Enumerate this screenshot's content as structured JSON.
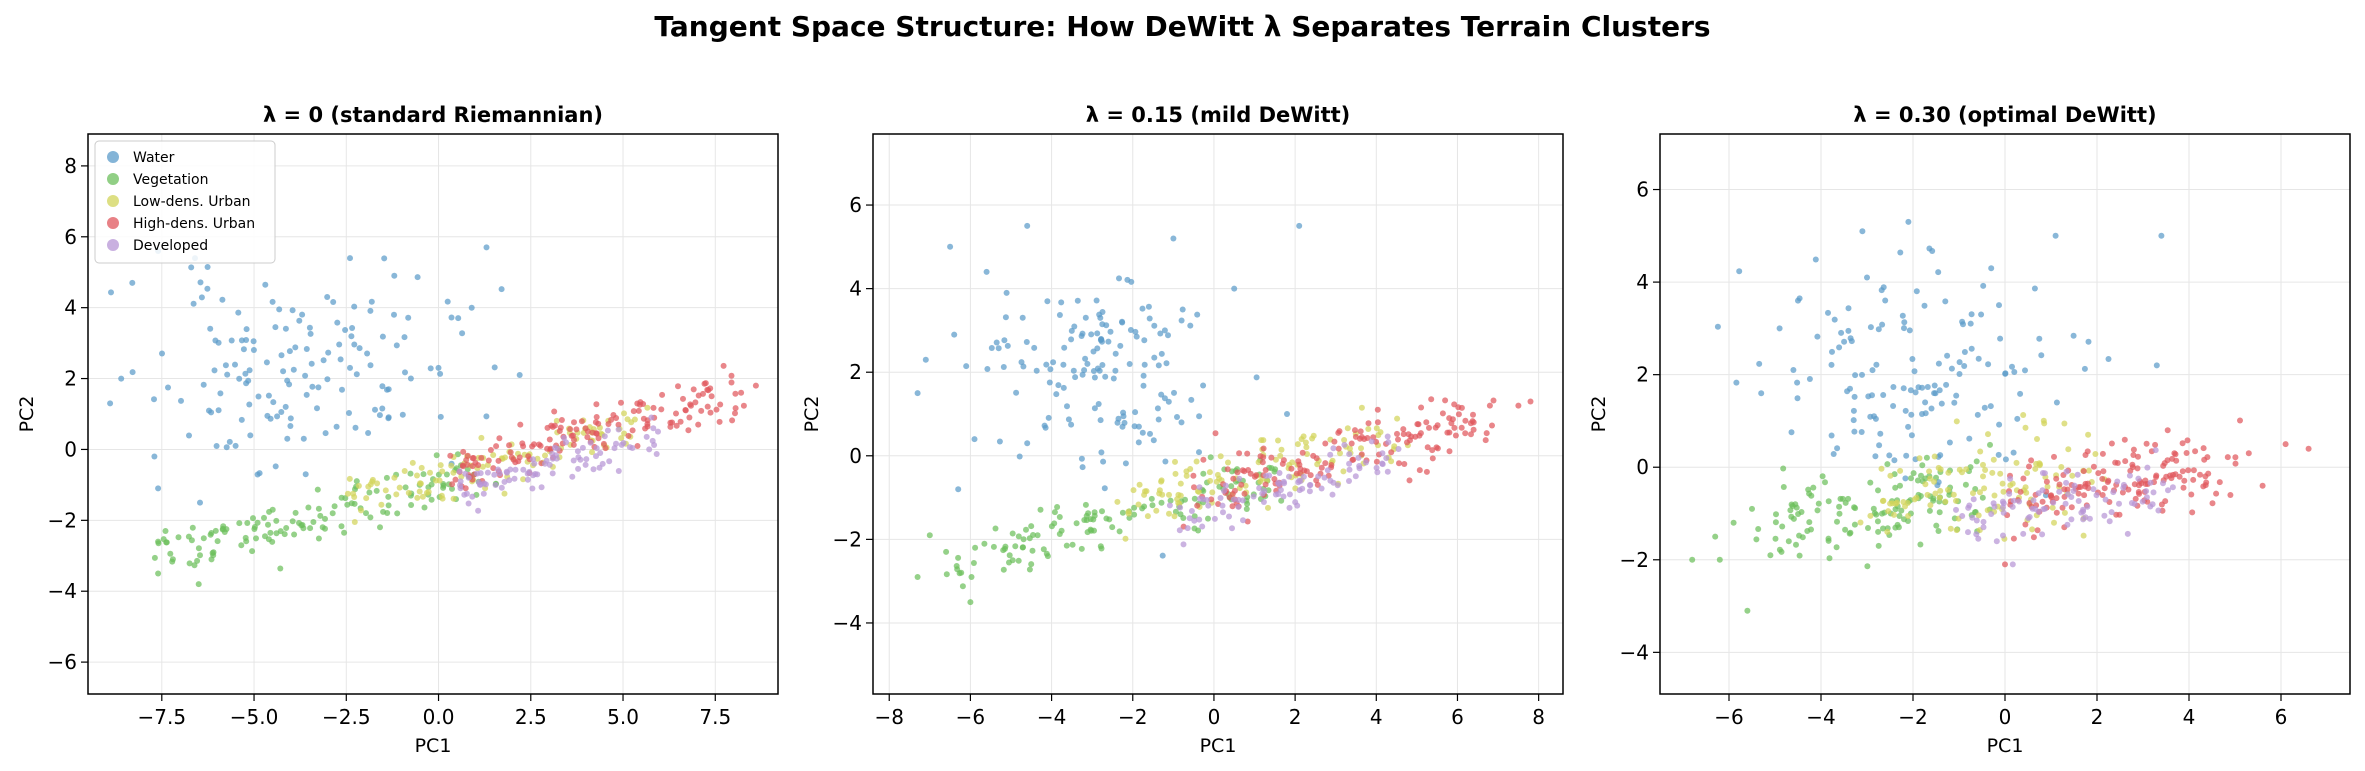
{
  "suptitle": "Tangent Space Structure: How DeWitt λ Separates Terrain Clusters",
  "colors": {
    "Water": "#5b9bc9",
    "Vegetation": "#6cbf5c",
    "Low-dens. Urban": "#d2d45a",
    "High-dens. Urban": "#e0575d",
    "Developed": "#b795d5"
  },
  "legend": {
    "placement": "top-left",
    "entries": [
      "Water",
      "Vegetation",
      "Low-dens. Urban",
      "High-dens. Urban",
      "Developed"
    ]
  },
  "chart_data": [
    {
      "type": "scatter",
      "title": "λ = 0 (standard Riemannian)",
      "xlabel": "PC1",
      "ylabel": "PC2",
      "xlim": [
        -9.5,
        9.2
      ],
      "ylim": [
        -6.9,
        8.9
      ],
      "xticks": [
        -7.5,
        -5.0,
        -2.5,
        0.0,
        2.5,
        5.0,
        7.5
      ],
      "xtick_labels": [
        "−7.5",
        "−5.0",
        "−2.5",
        "0.0",
        "2.5",
        "5.0",
        "7.5"
      ],
      "yticks": [
        -6,
        -4,
        -2,
        0,
        2,
        4,
        6,
        8
      ],
      "ytick_labels": [
        "−6",
        "−4",
        "−2",
        "0",
        "2",
        "4",
        "6",
        "8"
      ],
      "grid": true,
      "legend": true,
      "series": [
        {
          "name": "Water",
          "n": 140,
          "dist": "blob",
          "cx": -3.8,
          "cy": 2.2,
          "sx": 1.9,
          "sy": 1.3,
          "seed": 11,
          "points": [
            [
              -8.9,
              1.3
            ],
            [
              -8.6,
              2.0
            ],
            [
              -7.6,
              5.6
            ],
            [
              -6.6,
              5.4
            ],
            [
              1.3,
              5.7
            ],
            [
              -2.4,
              5.4
            ],
            [
              -1.2,
              4.9
            ],
            [
              0.9,
              4.0
            ],
            [
              -7.6,
              -1.1
            ],
            [
              -7.7,
              -0.2
            ],
            [
              -5.5,
              0.1
            ],
            [
              -3.6,
              -0.7
            ],
            [
              -4.1,
              0.3
            ],
            [
              2.2,
              2.1
            ],
            [
              0.0,
              2.3
            ],
            [
              -8.3,
              4.7
            ]
          ]
        },
        {
          "name": "Vegetation",
          "n": 130,
          "dist": "line",
          "x0": -7.5,
          "x1": 1.5,
          "y0": -3.0,
          "y1": -0.6,
          "noise": 0.35,
          "seed": 22,
          "points": [
            [
              -7.6,
              -3.5
            ],
            [
              -7.6,
              -2.6
            ],
            [
              -7.2,
              -3.1
            ],
            [
              -6.5,
              -3.8
            ],
            [
              -6.1,
              -2.9
            ],
            [
              -7.4,
              -2.3
            ]
          ]
        },
        {
          "name": "Low-dens. Urban",
          "n": 110,
          "dist": "line",
          "x0": -2.5,
          "x1": 5.5,
          "y0": -1.4,
          "y1": 0.6,
          "noise": 0.35,
          "seed": 33,
          "points": []
        },
        {
          "name": "High-dens. Urban",
          "n": 150,
          "dist": "line",
          "x0": 0.5,
          "x1": 8.0,
          "y0": -0.6,
          "y1": 1.6,
          "noise": 0.35,
          "seed": 44,
          "points": [
            [
              8.6,
              1.8
            ],
            [
              8.2,
              1.6
            ],
            [
              7.4,
              1.5
            ],
            [
              6.8,
              0.9
            ]
          ]
        },
        {
          "name": "Developed",
          "n": 90,
          "dist": "line",
          "x0": 0.5,
          "x1": 6.0,
          "y0": -1.2,
          "y1": 0.3,
          "noise": 0.3,
          "seed": 55,
          "points": []
        }
      ]
    },
    {
      "type": "scatter",
      "title": "λ = 0.15 (mild DeWitt)",
      "xlabel": "PC1",
      "ylabel": "PC2",
      "xlim": [
        -8.4,
        8.6
      ],
      "ylim": [
        -5.7,
        7.7
      ],
      "xticks": [
        -8,
        -6,
        -4,
        -2,
        0,
        2,
        4,
        6,
        8
      ],
      "xtick_labels": [
        "−8",
        "−6",
        "−4",
        "−2",
        "0",
        "2",
        "4",
        "6",
        "8"
      ],
      "yticks": [
        -4,
        -2,
        0,
        2,
        4,
        6
      ],
      "ytick_labels": [
        "−4",
        "−2",
        "0",
        "2",
        "4",
        "6"
      ],
      "grid": true,
      "legend": false,
      "series": [
        {
          "name": "Water",
          "n": 140,
          "dist": "blob",
          "cx": -2.8,
          "cy": 2.2,
          "sx": 1.5,
          "sy": 1.1,
          "seed": 111,
          "points": [
            [
              -7.3,
              1.5
            ],
            [
              -7.1,
              2.3
            ],
            [
              -6.5,
              5.0
            ],
            [
              -4.6,
              5.5
            ],
            [
              -1.0,
              5.2
            ],
            [
              2.1,
              5.5
            ],
            [
              0.5,
              4.0
            ],
            [
              -6.4,
              2.9
            ],
            [
              -5.6,
              4.4
            ],
            [
              -6.3,
              -0.8
            ],
            [
              -5.9,
              0.4
            ],
            [
              -4.6,
              0.3
            ],
            [
              1.8,
              1.0
            ],
            [
              -0.8,
              0.8
            ]
          ]
        },
        {
          "name": "Vegetation",
          "n": 130,
          "dist": "line",
          "x0": -6.5,
          "x1": 1.5,
          "y0": -2.5,
          "y1": -0.5,
          "noise": 0.35,
          "seed": 122,
          "points": [
            [
              -7.3,
              -2.9
            ],
            [
              -7.0,
              -1.9
            ],
            [
              -6.6,
              -2.3
            ],
            [
              -6.0,
              -3.5
            ]
          ]
        },
        {
          "name": "Low-dens. Urban",
          "n": 110,
          "dist": "line",
          "x0": -2.5,
          "x1": 4.5,
          "y0": -1.2,
          "y1": 0.5,
          "noise": 0.35,
          "seed": 133,
          "points": []
        },
        {
          "name": "High-dens. Urban",
          "n": 150,
          "dist": "line",
          "x0": -0.5,
          "x1": 7.0,
          "y0": -0.9,
          "y1": 1.0,
          "noise": 0.4,
          "seed": 144,
          "points": [
            [
              7.8,
              1.3
            ],
            [
              7.5,
              1.2
            ],
            [
              6.8,
              1.2
            ],
            [
              6.4,
              0.8
            ]
          ]
        },
        {
          "name": "Developed",
          "n": 90,
          "dist": "line",
          "x0": -1.0,
          "x1": 4.5,
          "y0": -1.5,
          "y1": 0.0,
          "noise": 0.3,
          "seed": 155,
          "points": []
        }
      ]
    },
    {
      "type": "scatter",
      "title": "λ = 0.30 (optimal DeWitt)",
      "xlabel": "PC1",
      "ylabel": "PC2",
      "xlim": [
        -7.5,
        7.5
      ],
      "ylim": [
        -4.9,
        7.2
      ],
      "xticks": [
        -6,
        -4,
        -2,
        0,
        2,
        4,
        6
      ],
      "xtick_labels": [
        "−6",
        "−4",
        "−2",
        "0",
        "2",
        "4",
        "6"
      ],
      "yticks": [
        -4,
        -2,
        0,
        2,
        4,
        6
      ],
      "ytick_labels": [
        "−4",
        "−2",
        "0",
        "2",
        "4",
        "6"
      ],
      "grid": true,
      "legend": false,
      "series": [
        {
          "name": "Water",
          "n": 140,
          "dist": "blob",
          "cx": -1.8,
          "cy": 2.0,
          "sx": 1.6,
          "sy": 1.2,
          "seed": 211,
          "points": [
            [
              -3.1,
              5.1
            ],
            [
              -2.1,
              5.3
            ],
            [
              1.1,
              5.0
            ],
            [
              3.4,
              5.0
            ],
            [
              -4.9,
              3.0
            ],
            [
              -4.5,
              3.6
            ],
            [
              -5.3,
              1.6
            ],
            [
              -4.6,
              2.1
            ],
            [
              3.3,
              2.2
            ],
            [
              -0.3,
              4.3
            ],
            [
              -3.0,
              4.1
            ]
          ]
        },
        {
          "name": "Vegetation",
          "n": 130,
          "dist": "line",
          "x0": -5.0,
          "x1": -0.5,
          "y0": -1.3,
          "y1": -0.5,
          "noise": 0.45,
          "seed": 222,
          "points": [
            [
              -6.8,
              -2.0
            ],
            [
              -6.3,
              -1.5
            ],
            [
              -5.6,
              -3.1
            ],
            [
              -6.2,
              -2.0
            ],
            [
              -5.9,
              -1.2
            ],
            [
              -5.5,
              -0.9
            ],
            [
              -5.1,
              -1.9
            ],
            [
              -4.7,
              -1.6
            ]
          ]
        },
        {
          "name": "Low-dens. Urban",
          "n": 110,
          "dist": "line",
          "x0": -3.0,
          "x1": 2.0,
          "y0": -0.6,
          "y1": -0.1,
          "noise": 0.55,
          "seed": 233,
          "points": []
        },
        {
          "name": "High-dens. Urban",
          "n": 150,
          "dist": "line",
          "x0": 0.0,
          "x1": 5.0,
          "y0": -0.6,
          "y1": -0.1,
          "noise": 0.45,
          "seed": 244,
          "points": [
            [
              6.6,
              0.4
            ],
            [
              6.1,
              0.5
            ],
            [
              5.3,
              0.3
            ],
            [
              0.0,
              -2.1
            ],
            [
              4.9,
              -0.6
            ],
            [
              5.6,
              -0.4
            ]
          ]
        },
        {
          "name": "Developed",
          "n": 90,
          "dist": "line",
          "x0": -1.0,
          "x1": 3.5,
          "y0": -1.1,
          "y1": -0.3,
          "noise": 0.35,
          "seed": 255,
          "points": []
        }
      ]
    }
  ]
}
